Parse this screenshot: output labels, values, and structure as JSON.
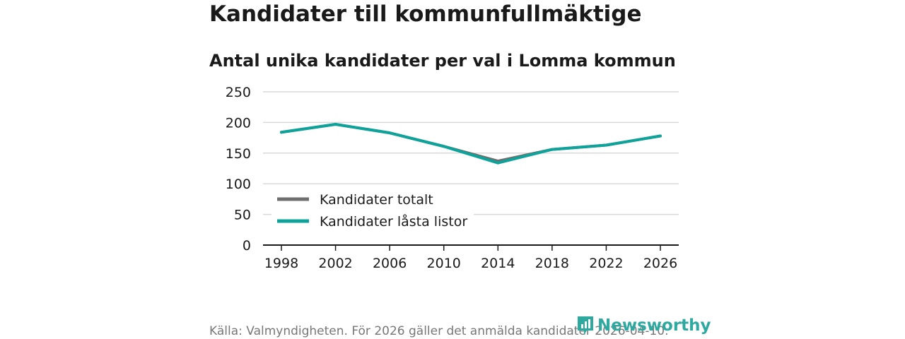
{
  "header": {
    "title": "Kandidater till kommunfullmäktige",
    "subtitle": "Antal unika kandidater per val i Lomma kommun"
  },
  "footer": {
    "source": "Källa: Valmyndigheten. För 2026 gäller det anmälda kandidater 2026-04-10.",
    "logo_text": "Newsworthy"
  },
  "colors": {
    "totalt": "#6e6e6e",
    "lasta": "#0ea39a",
    "grid": "#d9d9d9",
    "axis": "#1a1a1a"
  },
  "chart_data": {
    "type": "line",
    "x": [
      1998,
      2002,
      2006,
      2010,
      2014,
      2018,
      2022,
      2026
    ],
    "series": [
      {
        "name": "Kandidater totalt",
        "values": [
          184,
          197,
          183,
          161,
          137,
          156,
          163,
          178
        ]
      },
      {
        "name": "Kandidater låsta listor",
        "values": [
          184,
          197,
          183,
          161,
          134,
          156,
          163,
          178
        ]
      }
    ],
    "xticks": [
      "1998",
      "2002",
      "2006",
      "2010",
      "2014",
      "2018",
      "2022",
      "2026"
    ],
    "yticks": [
      "0",
      "50",
      "100",
      "150",
      "200",
      "250"
    ],
    "ylim": [
      0,
      250
    ],
    "xlim": [
      1998,
      2026
    ],
    "grid": true,
    "legend_position": "lower-left",
    "xlabel": "",
    "ylabel": ""
  }
}
